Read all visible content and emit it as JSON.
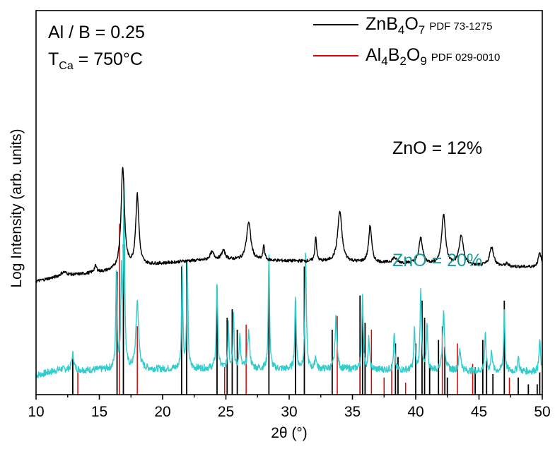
{
  "chart_data": {
    "type": "line",
    "xlabel": "2θ (°)",
    "ylabel": "Log Intensity (arb. units)",
    "xlim": [
      10,
      50
    ],
    "x_ticks": [
      10,
      15,
      20,
      25,
      30,
      35,
      40,
      45,
      50
    ],
    "annotations": {
      "ratio": "Al / B = 0.25",
      "temp_prefix": "T",
      "temp_sub": "Ca",
      "temp_suffix": " = 750°C"
    },
    "legend": {
      "placement": "top-right",
      "entries": [
        {
          "formula": [
            [
              "Zn",
              ""
            ],
            [
              "B",
              "4"
            ],
            [
              "O",
              "7"
            ]
          ],
          "pdf": "PDF 73-1275",
          "color": "#000000"
        },
        {
          "formula": [
            [
              "Al",
              "4"
            ],
            [
              "B",
              "2"
            ],
            [
              "O",
              "9"
            ]
          ],
          "pdf": "PDF 029-0010",
          "color": "#e00000"
        }
      ]
    },
    "series": [
      {
        "name": "ZnO = 12%",
        "color": "#000000",
        "label_color": "#000000",
        "baseline": 0.295,
        "amp": 0.33,
        "noise": 0.004,
        "background": [
          [
            10,
            0.0
          ],
          [
            12,
            0.04
          ],
          [
            14,
            0.06
          ],
          [
            16,
            0.08
          ],
          [
            19,
            0.13
          ],
          [
            22,
            0.16
          ],
          [
            25,
            0.17
          ],
          [
            30,
            0.16
          ],
          [
            35,
            0.15
          ],
          [
            40,
            0.14
          ],
          [
            45,
            0.12
          ],
          [
            50,
            0.11
          ]
        ],
        "peaks": [
          [
            12.2,
            0.03,
            0.6
          ],
          [
            14.7,
            0.05,
            0.25
          ],
          [
            16.85,
            0.8,
            0.32
          ],
          [
            18.0,
            0.56,
            0.3
          ],
          [
            23.9,
            0.06,
            0.4
          ],
          [
            24.8,
            0.07,
            0.35
          ],
          [
            26.8,
            0.3,
            0.4
          ],
          [
            28.0,
            0.12,
            0.15
          ],
          [
            32.1,
            0.2,
            0.15
          ],
          [
            34.0,
            0.4,
            0.4
          ],
          [
            36.4,
            0.29,
            0.28
          ],
          [
            38.3,
            0.04,
            0.4
          ],
          [
            40.4,
            0.2,
            0.35
          ],
          [
            42.2,
            0.4,
            0.35
          ],
          [
            43.6,
            0.23,
            0.4
          ],
          [
            46.0,
            0.15,
            0.4
          ],
          [
            47.2,
            0.02,
            0.3
          ],
          [
            49.8,
            0.11,
            0.3
          ]
        ]
      },
      {
        "name": "ZnO = 20%",
        "color": "#33cccc",
        "label_color": "#1a9a9a",
        "baseline": 0.05,
        "amp": 0.27,
        "noise": 0.009,
        "background": [
          [
            10,
            0.0
          ],
          [
            11,
            0.03
          ],
          [
            12,
            0.06
          ],
          [
            14,
            0.05
          ],
          [
            16,
            0.06
          ],
          [
            20,
            0.06
          ],
          [
            25,
            0.07
          ],
          [
            30,
            0.06
          ],
          [
            35,
            0.06
          ],
          [
            40,
            0.05
          ],
          [
            45,
            0.04
          ],
          [
            50,
            0.04
          ]
        ],
        "peaks": [
          [
            12.9,
            0.15,
            0.2
          ],
          [
            16.35,
            0.95,
            0.12
          ],
          [
            16.75,
            0.9,
            0.12
          ],
          [
            16.95,
            1.8,
            0.12
          ],
          [
            18.0,
            0.65,
            0.25
          ],
          [
            21.55,
            1.0,
            0.12
          ],
          [
            21.95,
            1.0,
            0.12
          ],
          [
            24.3,
            0.85,
            0.13
          ],
          [
            25.2,
            0.45,
            0.1
          ],
          [
            25.6,
            0.55,
            0.1
          ],
          [
            26.1,
            0.33,
            0.12
          ],
          [
            26.8,
            0.35,
            0.2
          ],
          [
            28.4,
            1.1,
            0.12
          ],
          [
            30.5,
            0.7,
            0.13
          ],
          [
            31.3,
            1.15,
            0.13
          ],
          [
            32.1,
            0.12,
            0.15
          ],
          [
            33.7,
            0.5,
            0.18
          ],
          [
            35.8,
            0.72,
            0.13
          ],
          [
            36.3,
            0.3,
            0.12
          ],
          [
            38.3,
            0.35,
            0.12
          ],
          [
            39.9,
            0.4,
            0.12
          ],
          [
            40.4,
            0.8,
            0.13
          ],
          [
            40.9,
            0.45,
            0.12
          ],
          [
            42.2,
            0.55,
            0.2
          ],
          [
            43.5,
            0.2,
            0.2
          ],
          [
            45.5,
            0.35,
            0.14
          ],
          [
            46.0,
            0.2,
            0.14
          ],
          [
            47.0,
            0.6,
            0.12
          ],
          [
            48.1,
            0.15,
            0.12
          ],
          [
            49.8,
            0.3,
            0.14
          ]
        ]
      }
    ],
    "reference_sticks": [
      {
        "name": "ZnB4O7 PDF 73-1275",
        "color": "#000000",
        "sticks": [
          [
            12.9,
            0.25
          ],
          [
            16.4,
            0.72
          ],
          [
            16.9,
            0.88
          ],
          [
            21.5,
            0.75
          ],
          [
            21.9,
            0.78
          ],
          [
            24.3,
            0.6
          ],
          [
            25.1,
            0.45
          ],
          [
            25.5,
            0.5
          ],
          [
            25.9,
            0.38
          ],
          [
            28.4,
            0.72
          ],
          [
            30.5,
            0.55
          ],
          [
            31.2,
            0.75
          ],
          [
            33.4,
            0.38
          ],
          [
            35.6,
            0.58
          ],
          [
            35.8,
            0.52
          ],
          [
            36.0,
            0.42
          ],
          [
            38.4,
            0.3
          ],
          [
            38.6,
            0.22
          ],
          [
            40.0,
            0.3
          ],
          [
            40.5,
            0.55
          ],
          [
            40.7,
            0.45
          ],
          [
            41.1,
            0.18
          ],
          [
            41.8,
            0.32
          ],
          [
            42.3,
            0.28
          ],
          [
            42.5,
            0.1
          ],
          [
            44.7,
            0.16
          ],
          [
            45.3,
            0.32
          ],
          [
            45.6,
            0.2
          ],
          [
            46.1,
            0.12
          ],
          [
            47.0,
            0.55
          ],
          [
            48.1,
            0.1
          ],
          [
            48.9,
            0.06
          ],
          [
            49.6,
            0.06
          ],
          [
            49.8,
            0.13
          ]
        ]
      },
      {
        "name": "Al4B2O9 PDF 029-0010",
        "color": "#e00000",
        "sticks": [
          [
            13.3,
            0.14
          ],
          [
            16.6,
            1.0
          ],
          [
            18.0,
            0.4
          ],
          [
            24.9,
            0.16
          ],
          [
            26.6,
            0.41
          ],
          [
            33.8,
            0.46
          ],
          [
            35.6,
            0.22
          ],
          [
            36.5,
            0.38
          ],
          [
            37.5,
            0.1
          ],
          [
            38.1,
            0.18
          ],
          [
            39.2,
            0.07
          ],
          [
            42.1,
            0.4
          ],
          [
            43.3,
            0.3
          ],
          [
            44.5,
            0.18
          ],
          [
            47.4,
            0.1
          ]
        ]
      }
    ]
  }
}
